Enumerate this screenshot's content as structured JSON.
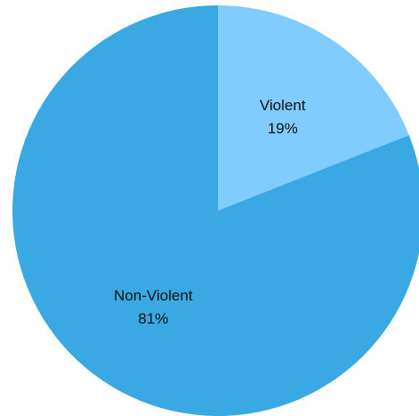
{
  "chart_data": {
    "type": "pie",
    "title": "",
    "legend": "none",
    "start_angle_deg": 0,
    "direction": "clockwise",
    "slices": [
      {
        "label": "Violent",
        "value": 19,
        "value_label": "19%",
        "color": "#80CCFF"
      },
      {
        "label": "Non-Violent",
        "value": 81,
        "value_label": "81%",
        "color": "#3AA8E3"
      }
    ]
  }
}
